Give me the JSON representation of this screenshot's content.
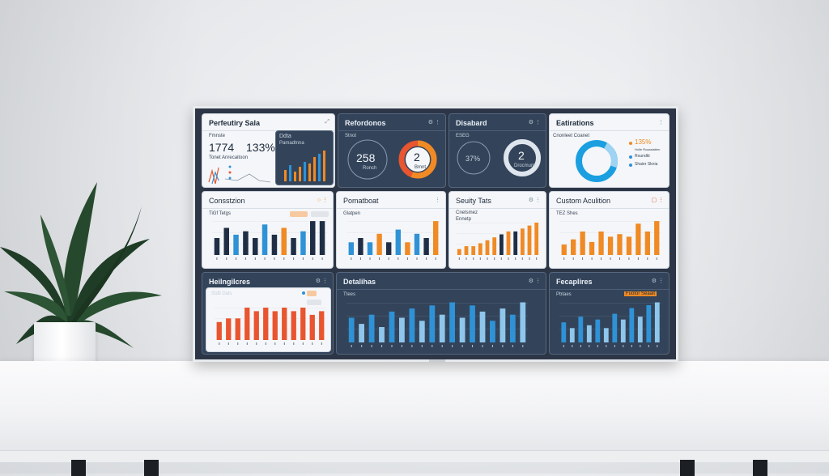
{
  "colors": {
    "orange": "#f08a24",
    "blue": "#2f92d6",
    "navy": "#1f2e45",
    "red": "#e8552f"
  },
  "panels": {
    "p1": {
      "title": "Perfeutiry Sala",
      "stat1": "1774",
      "stat2": "133%",
      "label1": "Fmnste",
      "label2": "Tonet Anrecaitoon",
      "sub_title": "Ddta",
      "sub_label": "Pamadtnna"
    },
    "p2": {
      "title": "Refordonos",
      "label": "Stnot",
      "ring_value": "258",
      "ring_caption": "Ronch",
      "donut_value": "2",
      "donut_caption": "Bmnt"
    },
    "p3": {
      "title": "Disabard",
      "label": "ESEG",
      "pct": "37%",
      "donut_value": "2",
      "donut_caption": "Drocmum"
    },
    "p4": {
      "title": "Eatirations",
      "label": "Cnonleet Coanet",
      "legend1": "135%",
      "legend2": "Roundkt",
      "legend3": "Shaier Sknia"
    },
    "p5": {
      "title": "Consstzion",
      "sub": "TiGf Tetgs"
    },
    "p6": {
      "title": "Pomatboat",
      "sub": "Glatpen"
    },
    "p7": {
      "title": "Seuity Tats",
      "sub1": "Cnetsmez",
      "sub2": "Ennetp"
    },
    "p8": {
      "title": "Custom Aculition",
      "sub": "TEZ Shes"
    },
    "p9": {
      "title": "Heilngilcres",
      "sub": "Stdll Dals"
    },
    "p10": {
      "title": "Detalihas",
      "sub": "Ttees"
    },
    "p11": {
      "title": "Fecaplires",
      "sub": "Pbtaes",
      "badge": "Fuotor Seaalt"
    }
  },
  "chart_data": [
    {
      "type": "bar",
      "title": "Consstzion",
      "series": [
        {
          "values": [
            5,
            8,
            6,
            7,
            5,
            9,
            6,
            8,
            5,
            7,
            10,
            10
          ]
        }
      ]
    },
    {
      "type": "bar",
      "title": "Pomatboat",
      "series": [
        {
          "values": [
            3,
            4,
            3,
            5,
            3,
            6,
            3,
            5,
            4,
            8
          ]
        }
      ]
    },
    {
      "type": "bar",
      "title": "Seuity Tats",
      "series": [
        {
          "values": [
            2,
            3,
            3,
            4,
            5,
            6,
            7,
            8,
            8,
            9,
            10,
            11
          ]
        }
      ]
    },
    {
      "type": "bar",
      "title": "Custom Aculition",
      "series": [
        {
          "values": [
            4,
            6,
            9,
            5,
            9,
            7,
            8,
            7,
            12,
            9,
            13
          ]
        }
      ]
    },
    {
      "type": "bar",
      "title": "Heilngilcres",
      "series": [
        {
          "values": [
            5,
            6,
            6,
            9,
            8,
            9,
            8,
            9,
            8,
            9,
            7,
            8
          ]
        }
      ]
    },
    {
      "type": "bar",
      "title": "Detalihas",
      "series": [
        {
          "values": [
            8,
            6,
            9,
            5,
            10,
            8,
            11,
            7,
            12,
            9,
            13,
            8,
            12,
            10,
            7,
            11,
            9,
            13
          ]
        }
      ]
    },
    {
      "type": "bar",
      "title": "Fecaplires",
      "series": [
        {
          "values": [
            7,
            5,
            9,
            6,
            8,
            5,
            10,
            8,
            12,
            9,
            13,
            14
          ]
        }
      ]
    }
  ]
}
